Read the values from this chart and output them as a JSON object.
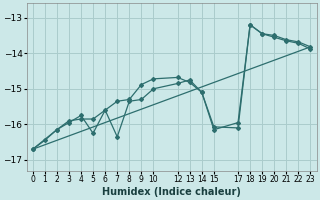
{
  "xlabel": "Humidex (Indice chaleur)",
  "ylabel": "",
  "background_color": "#cce8e8",
  "grid_color": "#aacccc",
  "line_color": "#2d6e6e",
  "xlim": [
    -0.5,
    23.5
  ],
  "ylim": [
    -17.3,
    -12.6
  ],
  "yticks": [
    -17,
    -16,
    -15,
    -14,
    -13
  ],
  "xtick_positions": [
    0,
    1,
    2,
    3,
    4,
    5,
    6,
    7,
    8,
    9,
    10,
    12,
    13,
    14,
    15,
    17,
    18,
    19,
    20,
    21,
    22,
    23
  ],
  "xtick_labels": [
    "0",
    "1",
    "2",
    "3",
    "4",
    "5",
    "6",
    "7",
    "8",
    "9",
    "10",
    "12",
    "13",
    "14",
    "15",
    "17",
    "18",
    "19",
    "20",
    "21",
    "22",
    "23"
  ],
  "series1_x": [
    0,
    1,
    2,
    3,
    4,
    5,
    6,
    7,
    8,
    9,
    10,
    12,
    13,
    14,
    15,
    17,
    18,
    19,
    20,
    21,
    22,
    23
  ],
  "series1_y": [
    -16.7,
    -16.45,
    -16.15,
    -15.95,
    -15.75,
    -16.25,
    -15.6,
    -16.35,
    -15.35,
    -15.3,
    -15.0,
    -14.85,
    -14.75,
    -15.1,
    -16.15,
    -15.95,
    -13.2,
    -13.45,
    -13.5,
    -13.62,
    -13.68,
    -13.82
  ],
  "series2_x": [
    0,
    2,
    3,
    4,
    5,
    7,
    8,
    9,
    10,
    12,
    13,
    14,
    15,
    17,
    18,
    19,
    20,
    21,
    22,
    23
  ],
  "series2_y": [
    -16.7,
    -16.15,
    -15.9,
    -15.85,
    -15.85,
    -15.35,
    -15.3,
    -14.88,
    -14.72,
    -14.68,
    -14.82,
    -15.1,
    -16.07,
    -16.1,
    -13.2,
    -13.45,
    -13.55,
    -13.65,
    -13.72,
    -13.88
  ],
  "series3_x": [
    0,
    23
  ],
  "series3_y": [
    -16.7,
    -13.82
  ]
}
